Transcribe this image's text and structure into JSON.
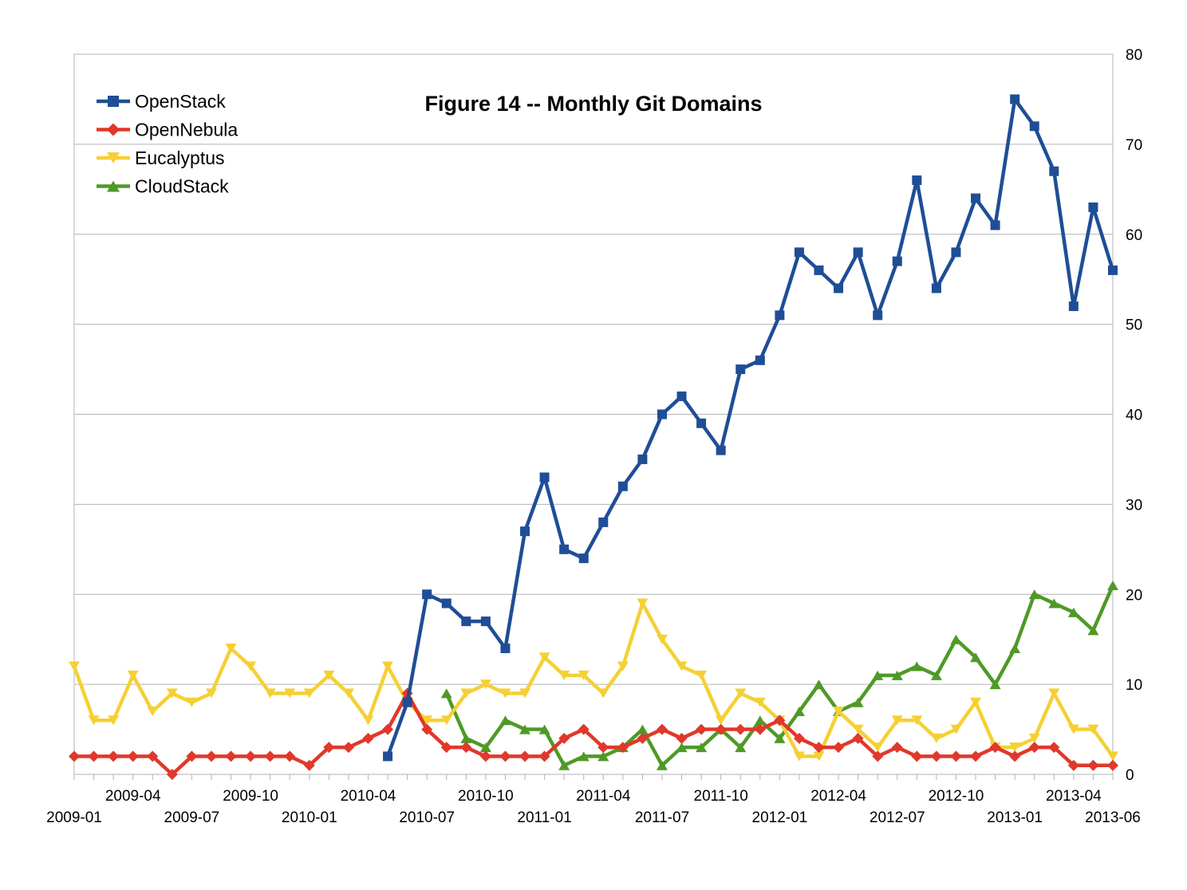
{
  "chart_data": {
    "type": "line",
    "title": "Figure 14 -- Monthly Git Domains",
    "xlabel": "",
    "ylabel": "",
    "ylim": [
      0,
      80
    ],
    "y_ticks": [
      0,
      10,
      20,
      30,
      40,
      50,
      60,
      70,
      80
    ],
    "grid": true,
    "legend_position": "top-left",
    "x_tick_labels_row1": [
      "2009-04",
      "2009-10",
      "2010-04",
      "2010-10",
      "2011-04",
      "2011-10",
      "2012-04",
      "2012-10",
      "2013-04"
    ],
    "x_tick_labels_row2": [
      "2009-01",
      "2009-07",
      "2010-01",
      "2010-07",
      "2011-01",
      "2011-07",
      "2012-01",
      "2012-07",
      "2013-01",
      "2013-06"
    ],
    "categories": [
      "2009-01",
      "2009-02",
      "2009-03",
      "2009-04",
      "2009-05",
      "2009-06",
      "2009-07",
      "2009-08",
      "2009-09",
      "2009-10",
      "2009-11",
      "2009-12",
      "2010-01",
      "2010-02",
      "2010-03",
      "2010-04",
      "2010-05",
      "2010-06",
      "2010-07",
      "2010-08",
      "2010-09",
      "2010-10",
      "2010-11",
      "2010-12",
      "2011-01",
      "2011-02",
      "2011-03",
      "2011-04",
      "2011-05",
      "2011-06",
      "2011-07",
      "2011-08",
      "2011-09",
      "2011-10",
      "2011-11",
      "2011-12",
      "2012-01",
      "2012-02",
      "2012-03",
      "2012-04",
      "2012-05",
      "2012-06",
      "2012-07",
      "2012-08",
      "2012-09",
      "2012-10",
      "2012-11",
      "2012-12",
      "2013-01",
      "2013-02",
      "2013-03",
      "2013-04",
      "2013-05",
      "2013-06"
    ],
    "series": [
      {
        "name": "OpenStack",
        "color": "#1f4e96",
        "marker": "square",
        "values": [
          null,
          null,
          null,
          null,
          null,
          null,
          null,
          null,
          null,
          null,
          null,
          null,
          null,
          null,
          null,
          null,
          2,
          8,
          20,
          19,
          17,
          17,
          14,
          27,
          33,
          25,
          24,
          28,
          32,
          35,
          40,
          42,
          39,
          36,
          45,
          46,
          51,
          58,
          56,
          54,
          58,
          51,
          57,
          66,
          54,
          58,
          64,
          61,
          75,
          72,
          67,
          52,
          63,
          56
        ]
      },
      {
        "name": "OpenNebula",
        "color": "#e0382a",
        "marker": "diamond",
        "values": [
          2,
          2,
          2,
          2,
          2,
          0,
          2,
          2,
          2,
          2,
          2,
          2,
          1,
          3,
          3,
          4,
          5,
          9,
          5,
          3,
          3,
          2,
          2,
          2,
          2,
          4,
          5,
          3,
          3,
          4,
          5,
          4,
          5,
          5,
          5,
          5,
          6,
          4,
          3,
          3,
          4,
          2,
          3,
          2,
          2,
          2,
          2,
          3,
          2,
          3,
          3,
          1,
          1,
          1
        ]
      },
      {
        "name": "Eucalyptus",
        "color": "#f5d034",
        "marker": "triangle-down",
        "values": [
          12,
          6,
          6,
          11,
          7,
          9,
          8,
          9,
          14,
          12,
          9,
          9,
          9,
          11,
          9,
          6,
          12,
          8,
          6,
          6,
          9,
          10,
          9,
          9,
          13,
          11,
          11,
          9,
          12,
          19,
          15,
          12,
          11,
          6,
          9,
          8,
          6,
          2,
          2,
          7,
          5,
          3,
          6,
          6,
          4,
          5,
          8,
          3,
          3,
          4,
          9,
          5,
          5,
          2
        ]
      },
      {
        "name": "CloudStack",
        "color": "#4e9a26",
        "marker": "triangle-up",
        "values": [
          null,
          null,
          null,
          null,
          null,
          null,
          null,
          null,
          null,
          null,
          null,
          null,
          null,
          null,
          null,
          null,
          null,
          null,
          null,
          9,
          4,
          3,
          6,
          5,
          5,
          1,
          2,
          2,
          3,
          5,
          1,
          3,
          3,
          5,
          3,
          6,
          4,
          7,
          10,
          7,
          8,
          11,
          11,
          12,
          11,
          15,
          13,
          10,
          14,
          20,
          19,
          18,
          16,
          21
        ]
      }
    ]
  }
}
